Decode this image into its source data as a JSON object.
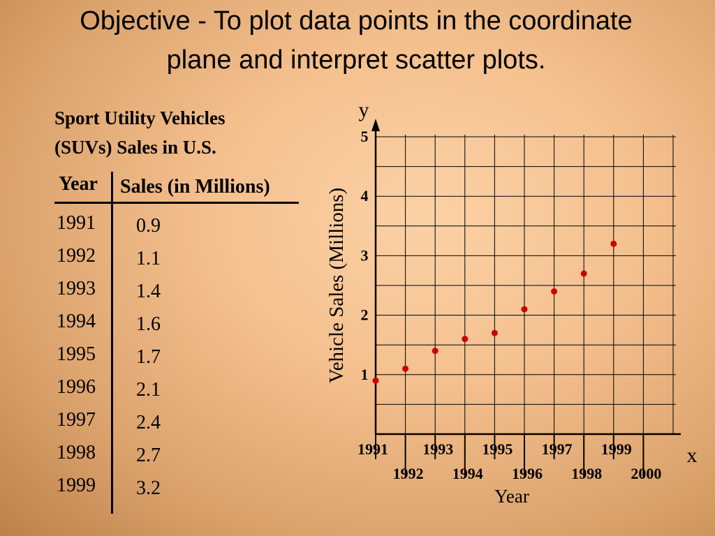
{
  "slide": {
    "title": "Objective - To plot data points in the coordinate plane and interpret scatter plots."
  },
  "table": {
    "heading_line1": "Sport Utility Vehicles",
    "heading_line2": "(SUVs) Sales in U.S.",
    "col_year": "Year",
    "col_sales": "Sales (in Millions)",
    "rows": [
      {
        "year": "1991",
        "sales": "0.9"
      },
      {
        "year": "1992",
        "sales": "1.1"
      },
      {
        "year": "1993",
        "sales": "1.4"
      },
      {
        "year": "1994",
        "sales": "1.6"
      },
      {
        "year": "1995",
        "sales": "1.7"
      },
      {
        "year": "1996",
        "sales": "2.1"
      },
      {
        "year": "1997",
        "sales": "2.4"
      },
      {
        "year": "1998",
        "sales": "2.7"
      },
      {
        "year": "1999",
        "sales": "3.2"
      }
    ]
  },
  "chart_data": {
    "type": "scatter",
    "title": "",
    "xlabel": "Year",
    "ylabel": "Vehicle Sales (Millions)",
    "x_axis_letter": "x",
    "y_axis_letter": "y",
    "xlim": [
      1991,
      2001
    ],
    "ylim": [
      0,
      5
    ],
    "x_ticks": [
      "1991",
      "1992",
      "1993",
      "1994",
      "1995",
      "1996",
      "1997",
      "1998",
      "1999",
      "2000"
    ],
    "y_ticks": [
      "1",
      "2",
      "3",
      "4",
      "5"
    ],
    "grid": true,
    "x": [
      1991,
      1992,
      1993,
      1994,
      1995,
      1996,
      1997,
      1998,
      1999
    ],
    "y": [
      0.9,
      1.1,
      1.4,
      1.6,
      1.7,
      2.1,
      2.4,
      2.7,
      3.2
    ],
    "point_color": "#cc0000"
  }
}
